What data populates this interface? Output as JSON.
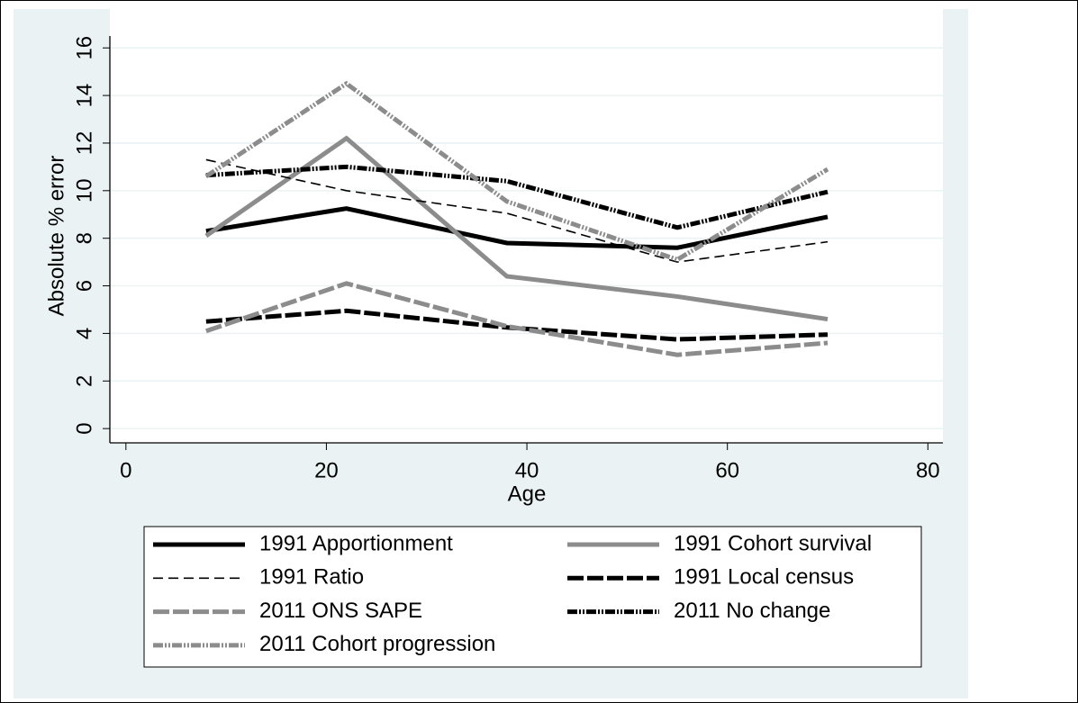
{
  "chart_data": {
    "type": "line",
    "x_label": "Age",
    "y_label": "Absolute % error",
    "x": [
      8,
      22,
      38,
      55,
      70
    ],
    "xlim": [
      -1.6,
      81.5
    ],
    "xticks": [
      0,
      20,
      40,
      60,
      80
    ],
    "ylim": [
      -0.6,
      16.5
    ],
    "yticks": [
      0,
      2,
      4,
      6,
      8,
      10,
      12,
      14,
      16
    ],
    "grid": true,
    "series": [
      {
        "name": "1991 Apportionment",
        "color": "#000000",
        "line_style": "solid",
        "line_weight": "thick",
        "values": [
          8.3,
          9.25,
          7.8,
          7.6,
          8.9
        ]
      },
      {
        "name": "1991 Cohort survival",
        "color": "#8c8c8c",
        "line_style": "solid",
        "line_weight": "thick",
        "values": [
          8.1,
          12.2,
          6.4,
          5.55,
          4.6
        ]
      },
      {
        "name": "1991 Ratio",
        "color": "#000000",
        "line_style": "dash",
        "line_weight": "thin",
        "values": [
          11.3,
          10.0,
          9.05,
          7.0,
          7.85
        ]
      },
      {
        "name": "1991 Local census",
        "color": "#000000",
        "line_style": "longdash",
        "line_weight": "thick",
        "values": [
          4.5,
          4.95,
          4.25,
          3.75,
          3.95
        ]
      },
      {
        "name": "2011 ONS SAPE",
        "color": "#8c8c8c",
        "line_style": "longdash",
        "line_weight": "thick",
        "values": [
          4.1,
          6.1,
          4.3,
          3.1,
          3.6
        ]
      },
      {
        "name": "2011 No change",
        "color": "#000000",
        "line_style": "dashdot",
        "line_weight": "thick",
        "values": [
          10.65,
          11.0,
          10.4,
          8.45,
          9.95
        ]
      },
      {
        "name": "2011 Cohort progression",
        "color": "#8c8c8c",
        "line_style": "dashdot",
        "line_weight": "thick",
        "values": [
          10.6,
          14.5,
          9.55,
          7.1,
          10.9
        ]
      }
    ]
  }
}
